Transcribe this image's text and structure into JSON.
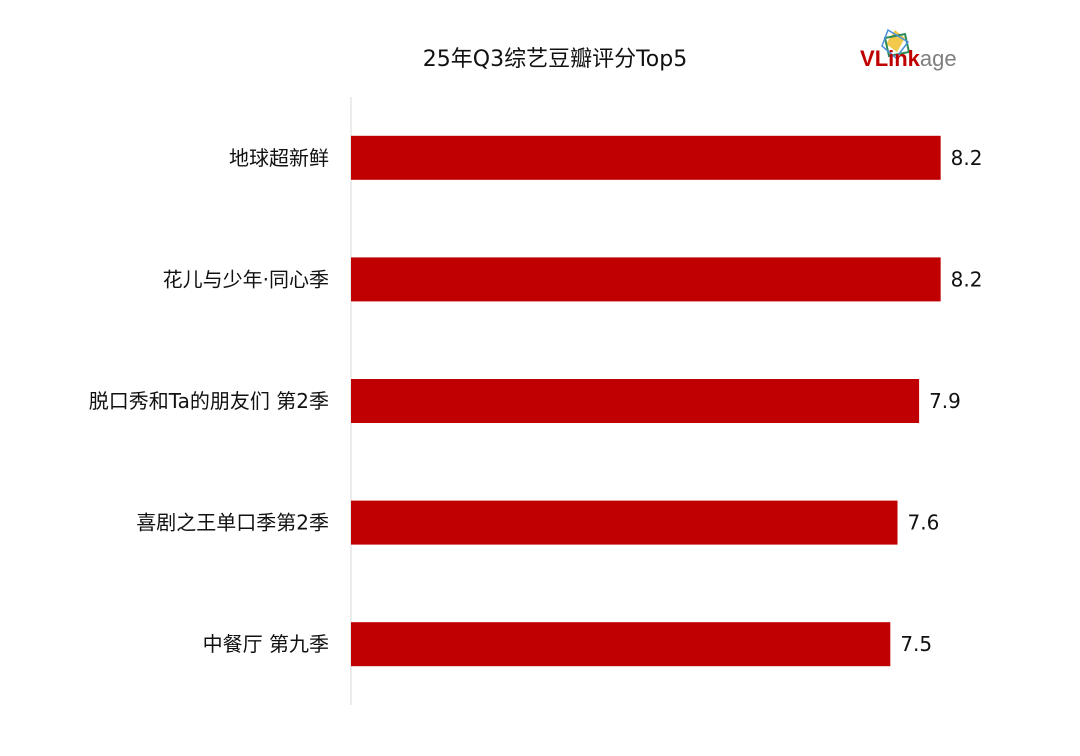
{
  "chart_data": {
    "type": "bar",
    "orientation": "horizontal",
    "title": "25年Q3综艺豆瓣评分Top5",
    "categories": [
      "地球超新鲜",
      "花儿与少年·同心季",
      "脱口秀和Ta的朋友们 第2季",
      "喜剧之王单口季第2季",
      "中餐厅 第九季"
    ],
    "values": [
      8.2,
      8.2,
      7.9,
      7.6,
      7.5
    ],
    "value_labels": [
      "8.2",
      "8.2",
      "7.9",
      "7.6",
      "7.5"
    ],
    "xlim": [
      0,
      8.9
    ],
    "grid": false,
    "bar_color": "#c00000"
  },
  "logo": {
    "text_v": "V",
    "text_link": "Link",
    "text_age": "age",
    "color_red": "#c00000",
    "color_gray": "#7f7f7f"
  }
}
